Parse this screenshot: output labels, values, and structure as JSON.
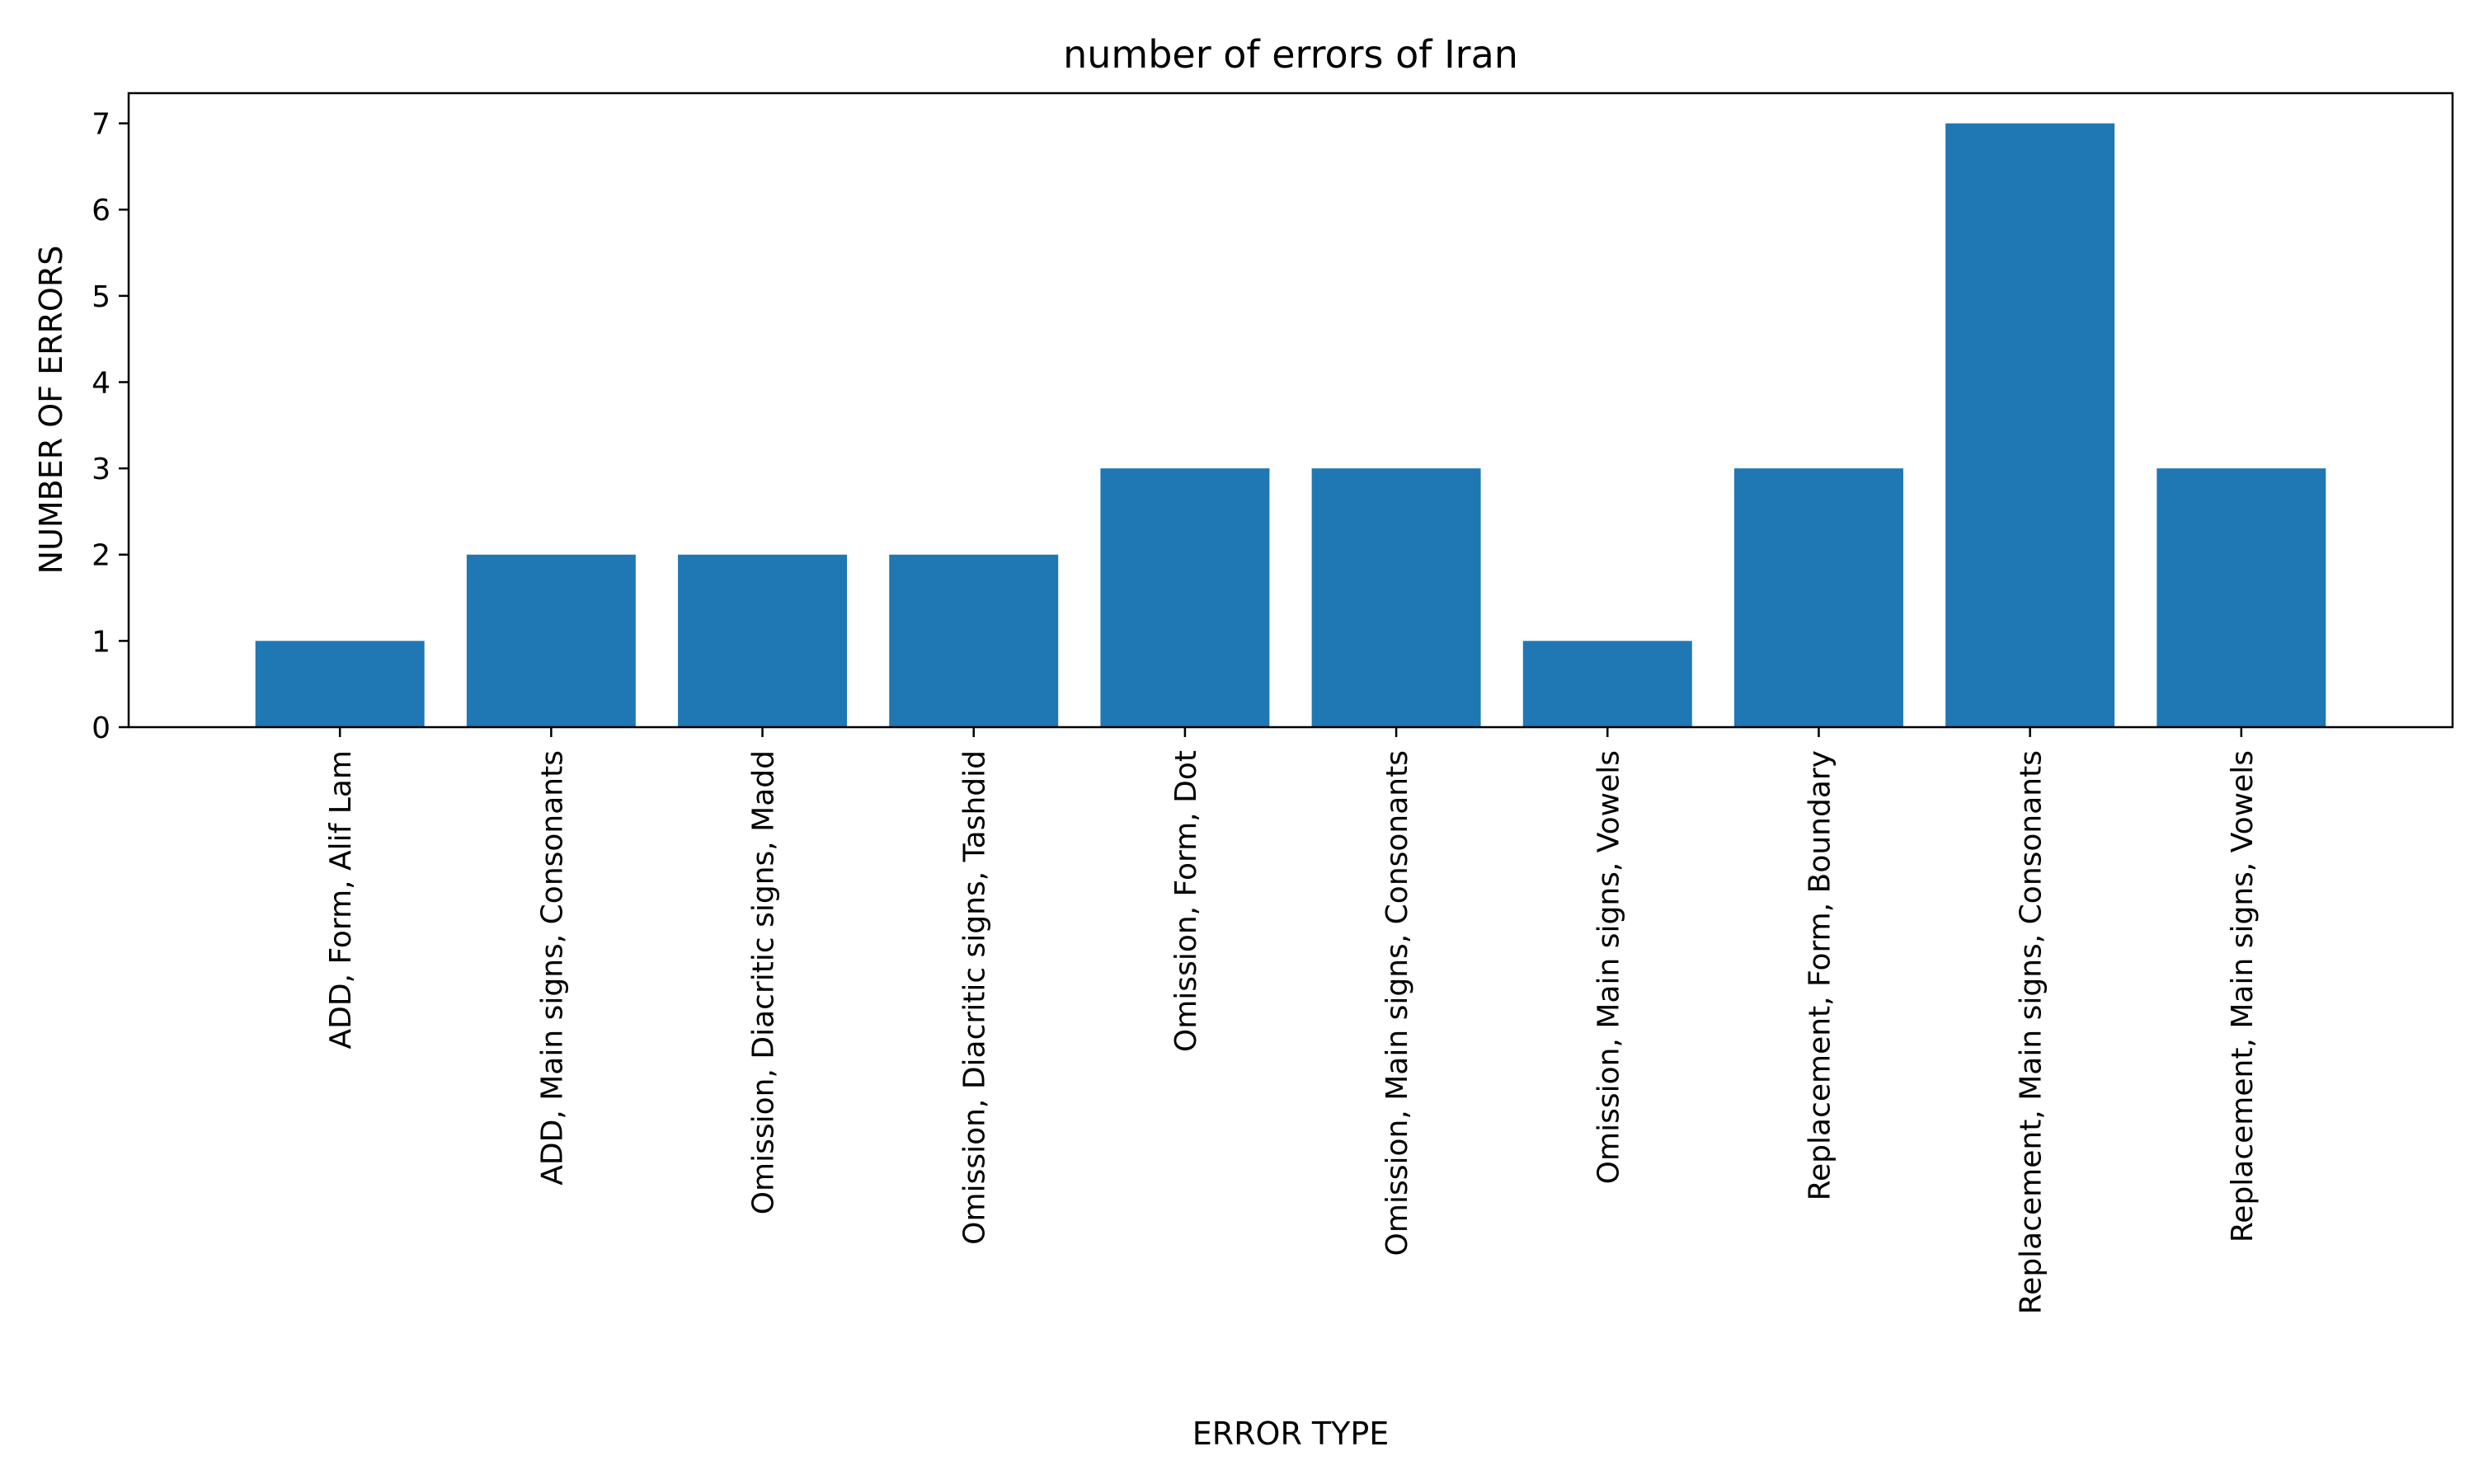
{
  "chart_data": {
    "type": "bar",
    "title": "number of errors of Iran",
    "xlabel": "ERROR TYPE",
    "ylabel": "NUMBER OF ERRORS",
    "categories": [
      "ADD, Form, Alif Lam",
      "ADD, Main signs, Consonants",
      "Omission, Diacritic signs, Madd",
      "Omission, Diacritic signs, Tashdid",
      "Omission, Form, Dot",
      "Omission, Main signs, Consonants",
      "Omission, Main signs, Vowels",
      "Replacement, Form, Boundary",
      "Replacement, Main signs, Consonants",
      "Replacement, Main signs, Vowels"
    ],
    "values": [
      1,
      2,
      2,
      2,
      3,
      3,
      1,
      3,
      7,
      3
    ],
    "ylim": [
      0,
      7.35
    ],
    "yticks": [
      "0",
      "1",
      "2",
      "3",
      "4",
      "5",
      "6",
      "7"
    ],
    "grid": false,
    "legend": "none",
    "bar_color": "#1f77b4"
  }
}
